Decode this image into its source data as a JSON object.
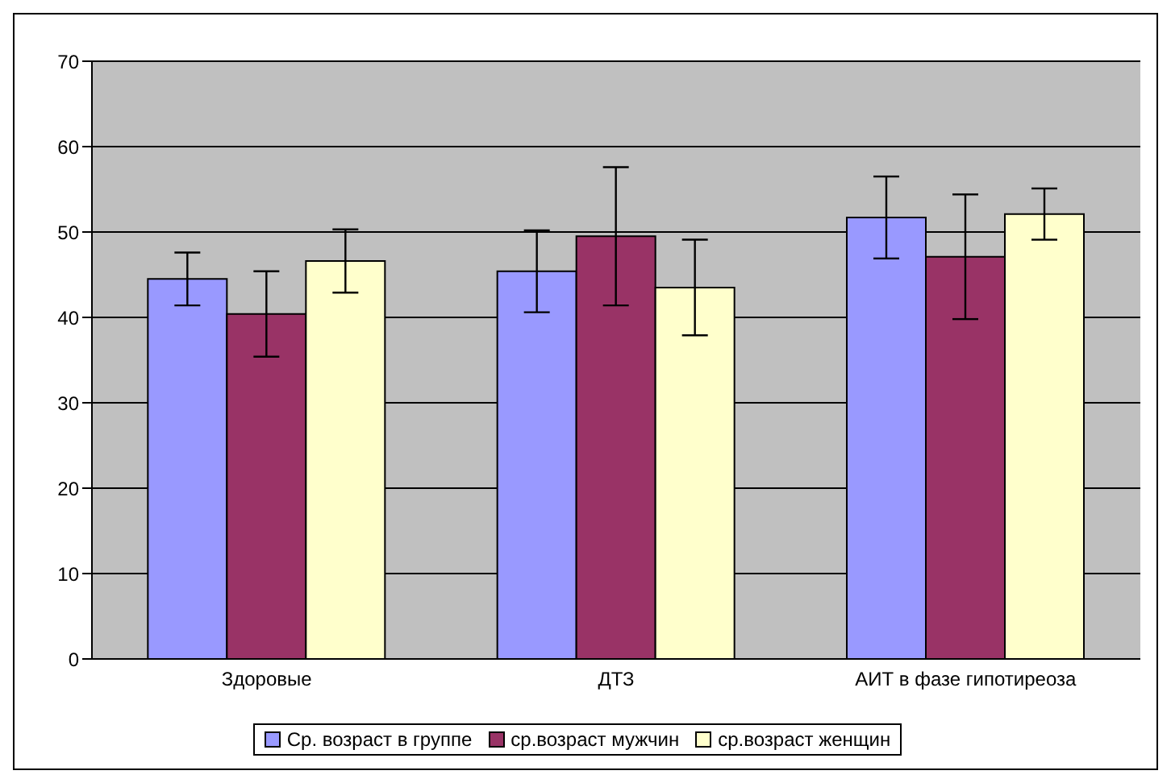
{
  "chart_data": {
    "type": "bar",
    "categories": [
      "Здоровые",
      "ДТЗ",
      "АИТ в фазе гипотиреоза"
    ],
    "series": [
      {
        "name": "Ср. возраст в группе",
        "color": "#9999ff",
        "values": [
          44.5,
          45.4,
          51.7
        ],
        "errors": [
          3.1,
          4.8,
          4.8
        ]
      },
      {
        "name": "ср.возраст мужчин",
        "color": "#993366",
        "values": [
          40.4,
          49.5,
          47.1
        ],
        "errors": [
          5.0,
          8.1,
          7.3
        ]
      },
      {
        "name": "ср.возраст женщин",
        "color": "#ffffcc",
        "values": [
          46.6,
          43.5,
          52.1
        ],
        "errors": [
          3.7,
          5.6,
          3.0
        ]
      }
    ],
    "ylim": [
      0,
      70
    ],
    "yticks": [
      0,
      10,
      20,
      30,
      40,
      50,
      60,
      70
    ],
    "grid": "y",
    "legend": "bottom"
  }
}
